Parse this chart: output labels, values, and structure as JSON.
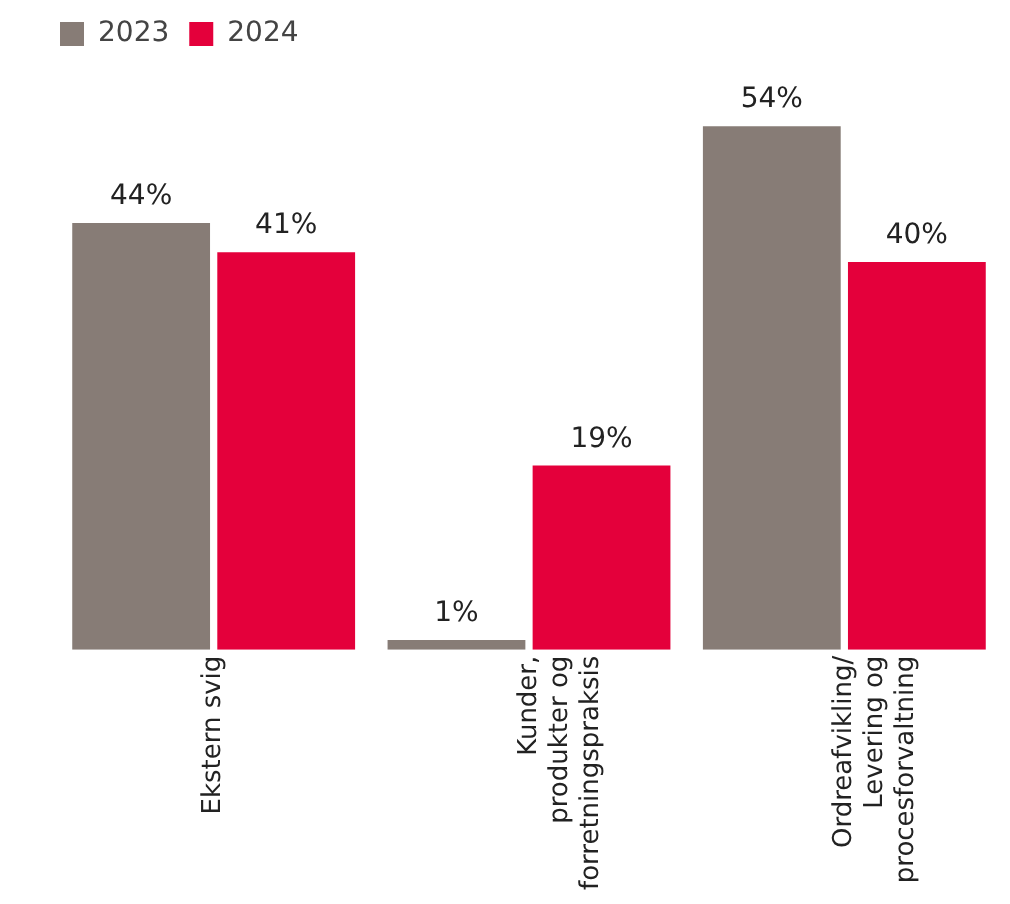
{
  "chart_data": {
    "type": "bar",
    "categories": [
      "Ekstern svig",
      "Kunder, produkter og forretningspraksis",
      "Ordreafvikling/ Levering og procesforvaltning"
    ],
    "series": [
      {
        "name": "2023",
        "color": "#877c76",
        "values": [
          44,
          1,
          54
        ],
        "value_labels": [
          "44%",
          "1%",
          "54%"
        ]
      },
      {
        "name": "2024",
        "color": "#e4003b",
        "values": [
          41,
          19,
          40
        ],
        "value_labels": [
          "41%",
          "19%",
          "40%"
        ]
      }
    ],
    "legend": "top left",
    "grid": false,
    "relative": false
  }
}
